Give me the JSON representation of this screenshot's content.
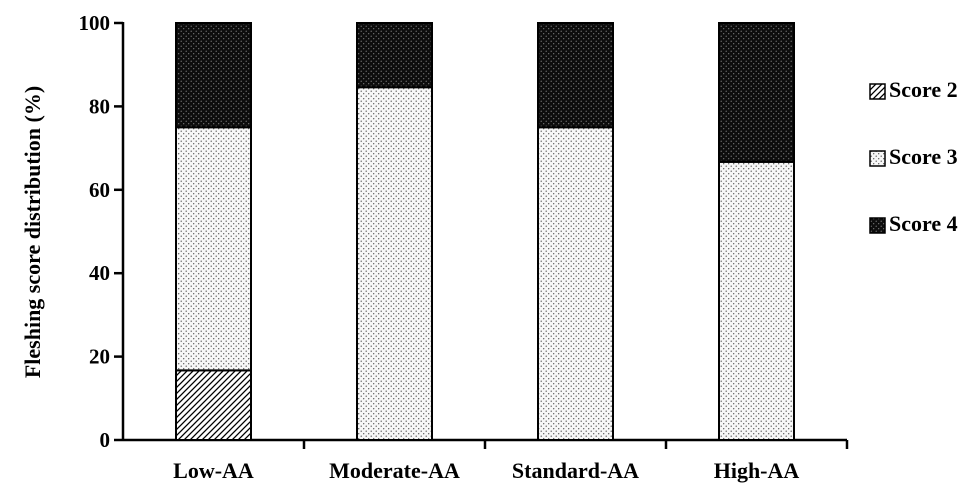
{
  "chart_data": {
    "type": "bar",
    "stacked": true,
    "title": "",
    "xlabel": "",
    "ylabel": "Fleshing score distribution (%)",
    "ylim": [
      0,
      100
    ],
    "yticks": [
      0,
      20,
      40,
      60,
      80,
      100
    ],
    "categories": [
      "Low-AA",
      "Moderate-AA",
      "Standard-AA",
      "High-AA"
    ],
    "series": [
      {
        "name": "Score 2",
        "values": [
          16.7,
          0,
          0,
          0
        ],
        "pattern": "hatch",
        "color": "#555555"
      },
      {
        "name": "Score 3",
        "values": [
          58.3,
          84.6,
          75.0,
          66.7
        ],
        "pattern": "dots-light",
        "color": "#d9d9d9"
      },
      {
        "name": "Score 4",
        "values": [
          25.0,
          15.4,
          25.0,
          33.3
        ],
        "pattern": "dots-dark",
        "color": "#111111"
      }
    ],
    "legend_position": "right",
    "grid": false
  }
}
